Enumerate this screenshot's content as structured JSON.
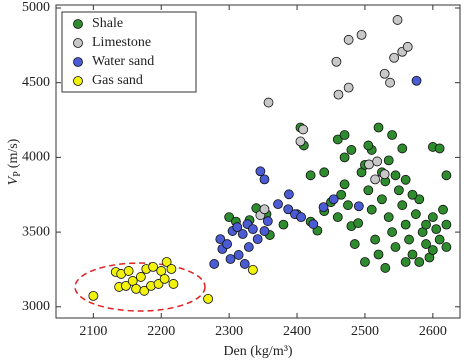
{
  "chart_data": {
    "type": "scatter",
    "xlabel": "Den (kg/m³)",
    "ylabel": {
      "symbol": "V",
      "subscript": "P",
      "unit": "(m/s)"
    },
    "xlim": [
      2045,
      2640
    ],
    "ylim": [
      2925,
      5020
    ],
    "xticks": [
      2100,
      2200,
      2300,
      2400,
      2500,
      2600
    ],
    "yticks": [
      3000,
      3500,
      4000,
      4500,
      5000
    ],
    "grid": false,
    "legend": "upper left",
    "series": [
      {
        "name": "Shale",
        "color": "#2e8b2e",
        "x": [
          2300,
          2310,
          2330,
          2340,
          2355,
          2360,
          2380,
          2400,
          2420,
          2430,
          2440,
          2450,
          2460,
          2465,
          2470,
          2475,
          2480,
          2485,
          2490,
          2495,
          2500,
          2505,
          2510,
          2515,
          2520,
          2525,
          2530,
          2535,
          2540,
          2545,
          2550,
          2555,
          2560,
          2565,
          2570,
          2575,
          2580,
          2585,
          2590,
          2595,
          2600,
          2605,
          2610,
          2600,
          2590,
          2570,
          2560,
          2545,
          2535,
          2525,
          2510,
          2505,
          2480,
          2470,
          2460,
          2470,
          2520,
          2410,
          2405,
          2540,
          2555,
          2600,
          2610,
          2620,
          2615,
          2620,
          2500,
          2530,
          2560,
          2580,
          2620,
          2420,
          2440
        ],
        "y": [
          3600,
          3570,
          3580,
          3660,
          3620,
          3480,
          3550,
          3620,
          3570,
          3510,
          3640,
          3700,
          3600,
          3750,
          3820,
          3680,
          3540,
          3420,
          3560,
          3900,
          3950,
          3780,
          3650,
          3450,
          3350,
          3720,
          3840,
          3600,
          3500,
          3400,
          3780,
          3680,
          3550,
          3450,
          3350,
          3620,
          3720,
          3500,
          3420,
          3330,
          3600,
          3520,
          3450,
          3380,
          3550,
          3750,
          3850,
          3880,
          3980,
          3900,
          4050,
          4080,
          4050,
          4000,
          4120,
          4150,
          4200,
          4080,
          4200,
          4150,
          4060,
          4070,
          4060,
          3880,
          3650,
          3550,
          3300,
          3260,
          3300,
          3300,
          3400,
          3880,
          3900
        ]
      },
      {
        "name": "Limestone",
        "color": "#c8c8c8",
        "x": [
          2358,
          2405,
          2458,
          2476,
          2495,
          2461,
          2476,
          2529,
          2548,
          2555,
          2563,
          2543,
          2537,
          2346,
          2352,
          2409,
          2506,
          2518,
          2529,
          2515
        ],
        "y": [
          4367,
          4107,
          4640,
          4787,
          4820,
          4420,
          4467,
          4560,
          4920,
          4707,
          4740,
          4667,
          4500,
          3613,
          3653,
          4187,
          3953,
          3973,
          3887,
          3853
        ]
      },
      {
        "name": "Water sand",
        "color": "#4a5bd4",
        "x": [
          2287,
          2290,
          2297,
          2305,
          2312,
          2320,
          2327,
          2335,
          2302,
          2314,
          2329,
          2342,
          2352,
          2357,
          2346,
          2352,
          2387,
          2397,
          2406,
          2424,
          2439,
          2454,
          2491,
          2576,
          2372,
          2323,
          2278,
          2388
        ],
        "y": [
          3453,
          3387,
          3420,
          3507,
          3533,
          3487,
          3553,
          3520,
          3320,
          3347,
          3400,
          3453,
          3507,
          3573,
          3907,
          3853,
          3653,
          3620,
          3600,
          3553,
          3667,
          3720,
          3673,
          4513,
          3687,
          3287,
          3287,
          3753
        ]
      },
      {
        "name": "Gas sand",
        "color": "#f2f20a",
        "x": [
          2100,
          2133,
          2141,
          2152,
          2138,
          2148,
          2158,
          2170,
          2178,
          2188,
          2200,
          2208,
          2215,
          2163,
          2175,
          2185,
          2196,
          2205,
          2218,
          2335,
          2269
        ],
        "y": [
          3073,
          3233,
          3220,
          3240,
          3133,
          3140,
          3173,
          3200,
          3253,
          3267,
          3240,
          3300,
          3253,
          3120,
          3107,
          3140,
          3153,
          3187,
          3153,
          3247,
          3053
        ]
      }
    ]
  }
}
